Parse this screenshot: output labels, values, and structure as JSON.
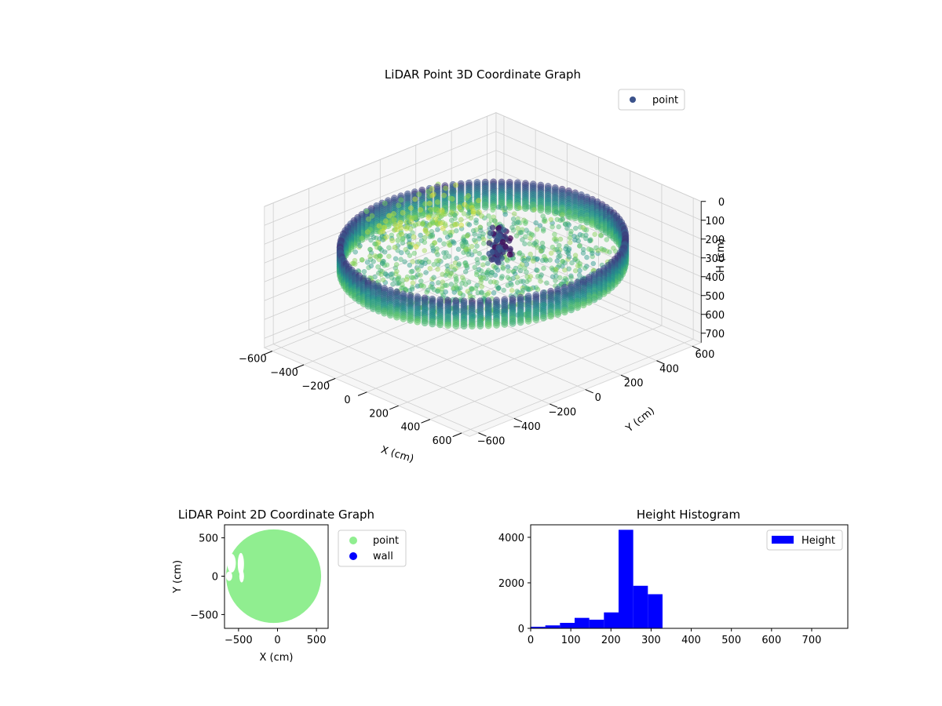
{
  "chart_data": [
    {
      "type": "scatter",
      "projection": "3d",
      "title": "LiDAR Point 3D Coordinate Graph",
      "xlabel": "X (cm)",
      "ylabel": "Y (cm)",
      "zlabel": "H (cm)",
      "xticks": [
        -600,
        -400,
        -200,
        0,
        200,
        400,
        600
      ],
      "yticks": [
        -600,
        -400,
        -200,
        0,
        200,
        400,
        600
      ],
      "zticks": [
        0,
        100,
        200,
        300,
        400,
        500,
        600,
        700
      ],
      "xlim": [
        -650,
        650
      ],
      "ylim": [
        -650,
        650
      ],
      "zlim": [
        750,
        0
      ],
      "zinverted": true,
      "colormap": "viridis",
      "legend": {
        "position": "top-right",
        "entries": [
          {
            "name": "point",
            "color": "#3b528b"
          }
        ]
      },
      "series": [
        {
          "name": "point",
          "description_hint": "cylindrical wall of points of radius ~600 cm, heights ~200-330 cm, plus interior floor points"
        }
      ],
      "grid": true
    },
    {
      "type": "scatter",
      "title": "LiDAR Point 2D Coordinate Graph",
      "xlabel": "X (cm)",
      "ylabel": "Y (cm)",
      "xticks": [
        -500,
        0,
        500
      ],
      "yticks": [
        -500,
        0,
        500
      ],
      "xlim": [
        -680,
        650
      ],
      "ylim": [
        -680,
        670
      ],
      "legend": {
        "position": "outside-right",
        "entries": [
          {
            "name": "point",
            "color": "#90ee90"
          },
          {
            "name": "wall",
            "color": "#0000ff"
          }
        ]
      },
      "series": [
        {
          "name": "point",
          "color": "#90ee90",
          "shape": "disc",
          "cx": -50,
          "cy": 0,
          "r": 610
        },
        {
          "name": "wall",
          "color": "#0000ff",
          "points": []
        }
      ]
    },
    {
      "type": "bar",
      "subtype": "histogram",
      "title": "Height Histogram",
      "xlabel": "",
      "ylabel": "",
      "xticks": [
        0,
        100,
        200,
        300,
        400,
        500,
        600,
        700
      ],
      "yticks": [
        0,
        2000,
        4000
      ],
      "xlim": [
        0,
        790
      ],
      "ylim": [
        0,
        4550
      ],
      "bar_color": "#0000ff",
      "bin_width": 36.5,
      "bins": [
        {
          "x0": 0,
          "x1": 36.5,
          "value": 70
        },
        {
          "x0": 36.5,
          "x1": 73,
          "value": 130
        },
        {
          "x0": 73,
          "x1": 109.5,
          "value": 240
        },
        {
          "x0": 109.5,
          "x1": 146,
          "value": 460
        },
        {
          "x0": 146,
          "x1": 182.5,
          "value": 380
        },
        {
          "x0": 182.5,
          "x1": 219,
          "value": 700
        },
        {
          "x0": 219,
          "x1": 255.5,
          "value": 4330
        },
        {
          "x0": 255.5,
          "x1": 292,
          "value": 1870
        },
        {
          "x0": 292,
          "x1": 328.5,
          "value": 1500
        }
      ],
      "legend": {
        "position": "top-right",
        "entries": [
          {
            "name": "Height",
            "color": "#0000ff"
          }
        ]
      }
    }
  ]
}
